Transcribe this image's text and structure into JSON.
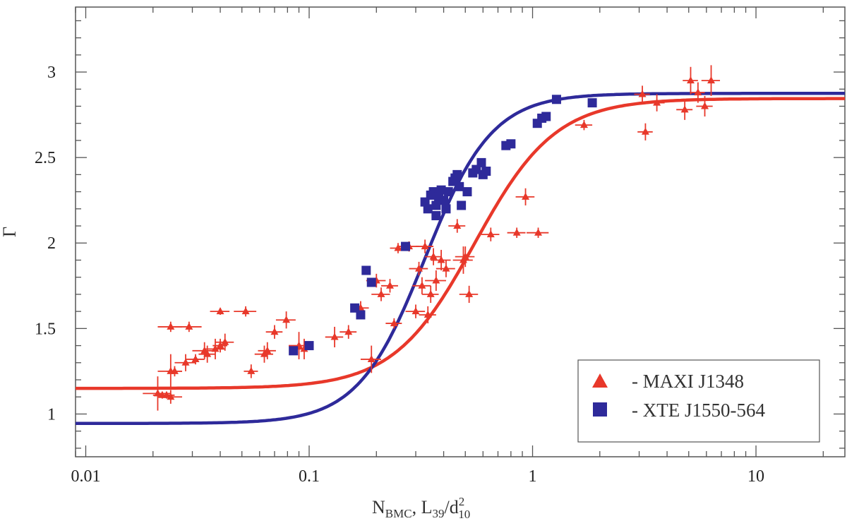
{
  "chart_data": {
    "type": "scatter",
    "x_scale": "log",
    "xlim": [
      0.009,
      25
    ],
    "ylim": [
      0.75,
      3.38
    ],
    "x_ticks": [
      0.01,
      0.1,
      1,
      10
    ],
    "x_tick_labels": [
      "0.01",
      "0.1",
      "1",
      "10"
    ],
    "y_ticks": [
      1,
      1.5,
      2,
      2.5,
      3
    ],
    "y_tick_labels": [
      "1",
      "1.5",
      "2",
      "2.5",
      "3"
    ],
    "ylabel": "Γ",
    "xlabel_parts": {
      "n": "N",
      "n_sub": "BMC",
      "sep": ", L",
      "l_sub": "39",
      "slash": "/d",
      "d_sup": "2",
      "d_sub": "10"
    },
    "grid": false,
    "legend_position": "bottom-right",
    "colors": {
      "maxi": "#e8382a",
      "xte": "#2e2a9a",
      "axis": "#555555"
    },
    "series": [
      {
        "name": "- MAXI J1348",
        "key": "maxi",
        "marker": "triangle",
        "points": [
          [
            0.021,
            1.12,
            0.003,
            0.1
          ],
          [
            0.022,
            1.11,
            0.002,
            0.02
          ],
          [
            0.023,
            1.11,
            0.002,
            0.02
          ],
          [
            0.024,
            1.1,
            0.003,
            0.04
          ],
          [
            0.024,
            1.25,
            0.003,
            0.1
          ],
          [
            0.024,
            1.51,
            0.003,
            0.03
          ],
          [
            0.025,
            1.25,
            0.002,
            0.03
          ],
          [
            0.028,
            1.3,
            0.003,
            0.05
          ],
          [
            0.029,
            1.51,
            0.004,
            0.03
          ],
          [
            0.031,
            1.32,
            0.003,
            0.03
          ],
          [
            0.034,
            1.37,
            0.004,
            0.05
          ],
          [
            0.035,
            1.35,
            0.003,
            0.05
          ],
          [
            0.038,
            1.38,
            0.004,
            0.06
          ],
          [
            0.04,
            1.6,
            0.004,
            0.02
          ],
          [
            0.04,
            1.4,
            0.003,
            0.04
          ],
          [
            0.042,
            1.42,
            0.004,
            0.05
          ],
          [
            0.052,
            1.6,
            0.006,
            0.03
          ],
          [
            0.055,
            1.25,
            0.004,
            0.04
          ],
          [
            0.063,
            1.35,
            0.006,
            0.05
          ],
          [
            0.065,
            1.37,
            0.006,
            0.05
          ],
          [
            0.07,
            1.48,
            0.006,
            0.04
          ],
          [
            0.079,
            1.55,
            0.008,
            0.05
          ],
          [
            0.09,
            1.4,
            0.009,
            0.08
          ],
          [
            0.095,
            1.38,
            0.009,
            0.06
          ],
          [
            0.13,
            1.45,
            0.012,
            0.06
          ],
          [
            0.15,
            1.48,
            0.013,
            0.04
          ],
          [
            0.17,
            1.62,
            0.015,
            0.04
          ],
          [
            0.19,
            1.32,
            0.02,
            0.08
          ],
          [
            0.2,
            1.78,
            0.02,
            0.04
          ],
          [
            0.21,
            1.7,
            0.02,
            0.04
          ],
          [
            0.23,
            1.75,
            0.02,
            0.04
          ],
          [
            0.24,
            1.53,
            0.02,
            0.03
          ],
          [
            0.25,
            1.97,
            0.02,
            0.03
          ],
          [
            0.28,
            1.98,
            0.03,
            0.03
          ],
          [
            0.3,
            1.6,
            0.03,
            0.04
          ],
          [
            0.31,
            1.85,
            0.03,
            0.04
          ],
          [
            0.32,
            1.75,
            0.03,
            0.05
          ],
          [
            0.33,
            1.98,
            0.03,
            0.04
          ],
          [
            0.34,
            1.58,
            0.03,
            0.05
          ],
          [
            0.35,
            1.7,
            0.03,
            0.05
          ],
          [
            0.36,
            1.92,
            0.03,
            0.05
          ],
          [
            0.37,
            1.78,
            0.04,
            0.06
          ],
          [
            0.39,
            1.9,
            0.04,
            0.06
          ],
          [
            0.41,
            1.85,
            0.04,
            0.05
          ],
          [
            0.46,
            2.1,
            0.04,
            0.04
          ],
          [
            0.49,
            1.9,
            0.05,
            0.08
          ],
          [
            0.5,
            1.92,
            0.05,
            0.06
          ],
          [
            0.52,
            1.7,
            0.05,
            0.05
          ],
          [
            0.65,
            2.05,
            0.06,
            0.04
          ],
          [
            0.85,
            2.06,
            0.08,
            0.03
          ],
          [
            0.93,
            2.27,
            0.09,
            0.05
          ],
          [
            1.06,
            2.06,
            0.12,
            0.03
          ],
          [
            1.7,
            2.69,
            0.15,
            0.03
          ],
          [
            3.1,
            2.87,
            0.25,
            0.05
          ],
          [
            3.2,
            2.65,
            0.25,
            0.05
          ],
          [
            3.6,
            2.82,
            0.3,
            0.05
          ],
          [
            4.8,
            2.78,
            0.4,
            0.06
          ],
          [
            5.1,
            2.95,
            0.4,
            0.08
          ],
          [
            5.5,
            2.88,
            0.4,
            0.06
          ],
          [
            5.9,
            2.8,
            0.5,
            0.06
          ],
          [
            6.3,
            2.95,
            0.6,
            0.09
          ]
        ],
        "fit": {
          "low": 1.15,
          "high": 2.845,
          "x0": 0.55,
          "s": 2.4
        }
      },
      {
        "name": "- XTE J1550-564",
        "key": "xte",
        "marker": "square",
        "points": [
          [
            0.085,
            1.37
          ],
          [
            0.1,
            1.4
          ],
          [
            0.16,
            1.62
          ],
          [
            0.17,
            1.58
          ],
          [
            0.18,
            1.84
          ],
          [
            0.19,
            1.77
          ],
          [
            0.27,
            1.98
          ],
          [
            0.33,
            2.24
          ],
          [
            0.34,
            2.2
          ],
          [
            0.35,
            2.28
          ],
          [
            0.36,
            2.3
          ],
          [
            0.37,
            2.22
          ],
          [
            0.37,
            2.16
          ],
          [
            0.38,
            2.27
          ],
          [
            0.39,
            2.31
          ],
          [
            0.4,
            2.25
          ],
          [
            0.41,
            2.2
          ],
          [
            0.42,
            2.3
          ],
          [
            0.44,
            2.36
          ],
          [
            0.45,
            2.38
          ],
          [
            0.46,
            2.4
          ],
          [
            0.47,
            2.33
          ],
          [
            0.48,
            2.22
          ],
          [
            0.51,
            2.3
          ],
          [
            0.54,
            2.41
          ],
          [
            0.56,
            2.43
          ],
          [
            0.59,
            2.47
          ],
          [
            0.6,
            2.4
          ],
          [
            0.62,
            2.42
          ],
          [
            0.76,
            2.57
          ],
          [
            0.8,
            2.58
          ],
          [
            1.05,
            2.7
          ],
          [
            1.1,
            2.73
          ],
          [
            1.15,
            2.74
          ],
          [
            1.28,
            2.84
          ],
          [
            1.85,
            2.82
          ]
        ],
        "fit": {
          "low": 0.945,
          "high": 2.875,
          "x0": 0.33,
          "s": 2.9
        }
      }
    ]
  }
}
